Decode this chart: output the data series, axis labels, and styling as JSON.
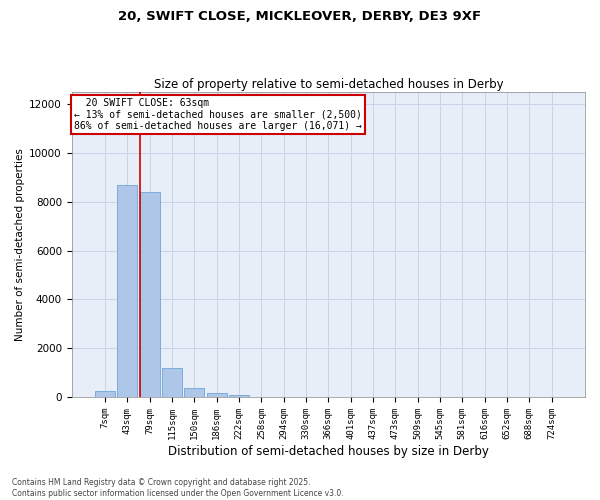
{
  "title1": "20, SWIFT CLOSE, MICKLEOVER, DERBY, DE3 9XF",
  "title2": "Size of property relative to semi-detached houses in Derby",
  "xlabel": "Distribution of semi-detached houses by size in Derby",
  "ylabel": "Number of semi-detached properties",
  "footnote1": "Contains HM Land Registry data © Crown copyright and database right 2025.",
  "footnote2": "Contains public sector information licensed under the Open Government Licence v3.0.",
  "categories": [
    "7sqm",
    "43sqm",
    "79sqm",
    "115sqm",
    "150sqm",
    "186sqm",
    "222sqm",
    "258sqm",
    "294sqm",
    "330sqm",
    "366sqm",
    "401sqm",
    "437sqm",
    "473sqm",
    "509sqm",
    "545sqm",
    "581sqm",
    "616sqm",
    "652sqm",
    "688sqm",
    "724sqm"
  ],
  "bar_values": [
    250,
    8700,
    8400,
    1200,
    350,
    150,
    80,
    0,
    0,
    0,
    0,
    0,
    0,
    0,
    0,
    0,
    0,
    0,
    0,
    0,
    0
  ],
  "bar_color": "#aec6e8",
  "bar_edge_color": "#5b9bd5",
  "grid_color": "#c8d4e8",
  "bg_color": "#e8eef7",
  "property_label": "20 SWIFT CLOSE: 63sqm",
  "smaller_pct": "13%",
  "smaller_count": "2,500",
  "larger_pct": "86%",
  "larger_count": "16,071",
  "vline_color": "#cc0000",
  "annotation_box_color": "#cc0000",
  "ylim": [
    0,
    12500
  ],
  "yticks": [
    0,
    2000,
    4000,
    6000,
    8000,
    10000,
    12000
  ]
}
